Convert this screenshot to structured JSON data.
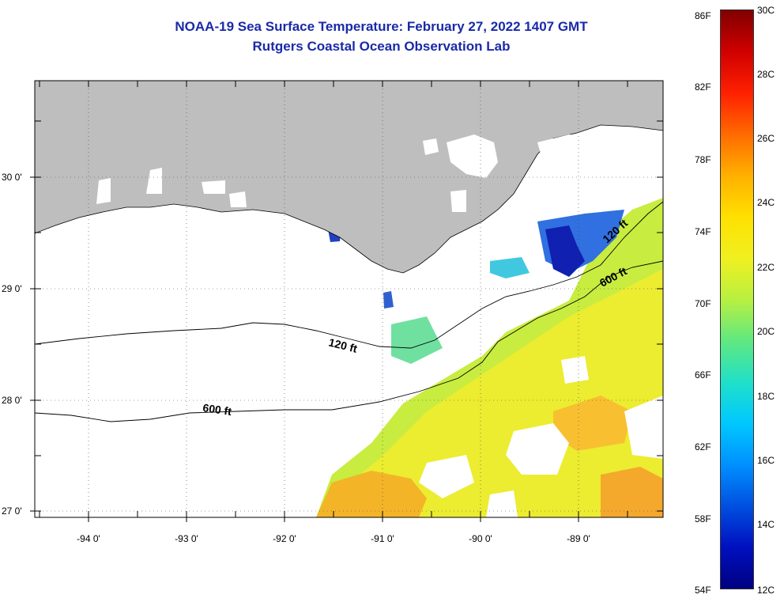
{
  "title": {
    "line1": "NOAA-19 Sea Surface Temperature:  February 27, 2022 1407 GMT",
    "line2": "Rutgers Coastal Ocean Observation Lab"
  },
  "map": {
    "latitude_labels": [
      "30 0'",
      "29 0'",
      "28 0'",
      "27 0'"
    ],
    "longitude_labels": [
      "-94 0'",
      "-93 0'",
      "-92 0'",
      "-91 0'",
      "-90 0'",
      "-89 0'"
    ],
    "land_color": "#bebebe",
    "water_nodata_color": "#ffffff",
    "contour_labels": [
      {
        "text": "120 ft"
      },
      {
        "text": "600 ft"
      },
      {
        "text": "120 ft"
      },
      {
        "text": "600 ft"
      }
    ]
  },
  "colorbar": {
    "fahrenheit_labels": [
      "86F",
      "82F",
      "78F",
      "74F",
      "70F",
      "66F",
      "62F",
      "58F",
      "54F"
    ],
    "celsius_labels": [
      "30C",
      "28C",
      "26C",
      "24C",
      "22C",
      "20C",
      "18C",
      "16C",
      "14C",
      "12C"
    ],
    "range_c": [
      12,
      30
    ],
    "gradient_colors": [
      "#800000",
      "#d00000",
      "#ff2000",
      "#ff6a00",
      "#ffb000",
      "#ffe000",
      "#f0f020",
      "#b8f040",
      "#60e880",
      "#20e0c8",
      "#00c8ff",
      "#0090ff",
      "#0050e0",
      "#0010c0",
      "#000080"
    ]
  }
}
